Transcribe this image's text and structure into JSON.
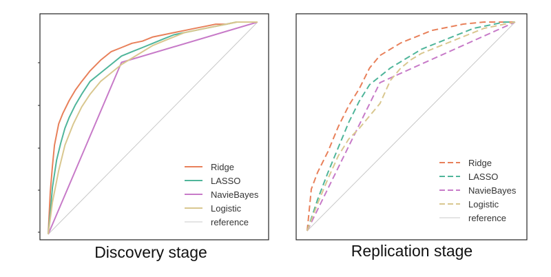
{
  "chart_data": [
    {
      "type": "line",
      "title": "",
      "caption": "Discovery stage",
      "xlabel": "",
      "ylabel": "",
      "xlim": [
        0,
        1
      ],
      "ylim": [
        0,
        1
      ],
      "grid": false,
      "legend_position": "bottom-right",
      "series": [
        {
          "name": "Ridge",
          "color": "#e8805a",
          "dash": "solid",
          "x": [
            0,
            0.005,
            0.01,
            0.02,
            0.03,
            0.05,
            0.07,
            0.1,
            0.13,
            0.16,
            0.2,
            0.25,
            0.3,
            0.35,
            0.4,
            0.45,
            0.5,
            0.55,
            0.6,
            0.65,
            0.7,
            0.75,
            0.8,
            0.85,
            0.9,
            0.95,
            1
          ],
          "y": [
            0,
            0.1,
            0.2,
            0.32,
            0.42,
            0.52,
            0.57,
            0.63,
            0.68,
            0.72,
            0.77,
            0.82,
            0.86,
            0.88,
            0.9,
            0.91,
            0.93,
            0.94,
            0.95,
            0.96,
            0.97,
            0.98,
            0.99,
            0.99,
            1,
            1,
            1
          ]
        },
        {
          "name": "LASSO",
          "color": "#4fb59a",
          "dash": "solid",
          "x": [
            0,
            0.01,
            0.02,
            0.04,
            0.06,
            0.08,
            0.1,
            0.13,
            0.16,
            0.2,
            0.25,
            0.3,
            0.35,
            0.4,
            0.45,
            0.5,
            0.55,
            0.6,
            0.65,
            0.7,
            0.75,
            0.8,
            0.85,
            0.9,
            0.95,
            1
          ],
          "y": [
            0,
            0.1,
            0.22,
            0.35,
            0.43,
            0.5,
            0.55,
            0.61,
            0.66,
            0.72,
            0.76,
            0.8,
            0.84,
            0.86,
            0.88,
            0.9,
            0.92,
            0.94,
            0.95,
            0.96,
            0.97,
            0.98,
            0.99,
            1,
            1,
            1
          ]
        },
        {
          "name": "NavieBayes",
          "color": "#c77ac8",
          "dash": "solid",
          "x": [
            0,
            0.35,
            1
          ],
          "y": [
            0,
            0.81,
            1
          ]
        },
        {
          "name": "Logistic",
          "color": "#d9c78f",
          "dash": "solid",
          "x": [
            0,
            0.02,
            0.05,
            0.08,
            0.12,
            0.16,
            0.2,
            0.25,
            0.3,
            0.35,
            0.4,
            0.45,
            0.5,
            0.55,
            0.6,
            0.65,
            0.7,
            0.75,
            0.8,
            0.85,
            0.9,
            1
          ],
          "y": [
            0,
            0.15,
            0.3,
            0.42,
            0.52,
            0.6,
            0.66,
            0.72,
            0.76,
            0.8,
            0.83,
            0.86,
            0.89,
            0.91,
            0.93,
            0.95,
            0.96,
            0.97,
            0.98,
            0.99,
            1,
            1
          ]
        },
        {
          "name": "reference",
          "color": "#c8c8c8",
          "dash": "solid",
          "x": [
            0,
            1
          ],
          "y": [
            0,
            1
          ]
        }
      ]
    },
    {
      "type": "line",
      "title": "",
      "caption": "Replication stage",
      "xlabel": "",
      "ylabel": "",
      "xlim": [
        0,
        1
      ],
      "ylim": [
        0,
        1
      ],
      "grid": false,
      "legend_position": "bottom-right",
      "series": [
        {
          "name": "Ridge",
          "color": "#e8805a",
          "dash": "dashed",
          "x": [
            0,
            0.02,
            0.05,
            0.1,
            0.15,
            0.2,
            0.25,
            0.3,
            0.35,
            0.4,
            0.45,
            0.5,
            0.55,
            0.6,
            0.65,
            0.7,
            0.75,
            0.8,
            0.85,
            0.9,
            0.95,
            1
          ],
          "y": [
            0,
            0.2,
            0.28,
            0.38,
            0.5,
            0.6,
            0.68,
            0.78,
            0.84,
            0.87,
            0.9,
            0.92,
            0.94,
            0.96,
            0.97,
            0.98,
            0.99,
            0.995,
            1,
            1,
            1,
            1
          ]
        },
        {
          "name": "LASSO",
          "color": "#4fb59a",
          "dash": "dashed",
          "x": [
            0,
            0.05,
            0.1,
            0.15,
            0.2,
            0.25,
            0.3,
            0.35,
            0.4,
            0.45,
            0.5,
            0.55,
            0.6,
            0.65,
            0.7,
            0.75,
            0.8,
            0.85,
            0.9,
            0.95,
            1
          ],
          "y": [
            0,
            0.15,
            0.28,
            0.4,
            0.52,
            0.62,
            0.7,
            0.74,
            0.78,
            0.81,
            0.84,
            0.87,
            0.89,
            0.91,
            0.93,
            0.95,
            0.97,
            0.98,
            0.99,
            1,
            1
          ]
        },
        {
          "name": "NavieBayes",
          "color": "#c77ac8",
          "dash": "dashed",
          "x": [
            0,
            0.35,
            1
          ],
          "y": [
            0,
            0.71,
            1
          ]
        },
        {
          "name": "Logistic",
          "color": "#d9c78f",
          "dash": "dashed",
          "x": [
            0,
            0.05,
            0.1,
            0.15,
            0.2,
            0.25,
            0.3,
            0.35,
            0.4,
            0.45,
            0.5,
            0.55,
            0.6,
            0.65,
            0.7,
            0.75,
            0.8,
            0.85,
            0.9,
            0.95,
            1
          ],
          "y": [
            0,
            0.13,
            0.25,
            0.36,
            0.44,
            0.49,
            0.55,
            0.61,
            0.72,
            0.78,
            0.82,
            0.85,
            0.87,
            0.89,
            0.91,
            0.93,
            0.95,
            0.97,
            0.98,
            0.99,
            1
          ]
        },
        {
          "name": "reference",
          "color": "#c8c8c8",
          "dash": "solid",
          "x": [
            0,
            1
          ],
          "y": [
            0,
            1
          ]
        }
      ]
    }
  ]
}
